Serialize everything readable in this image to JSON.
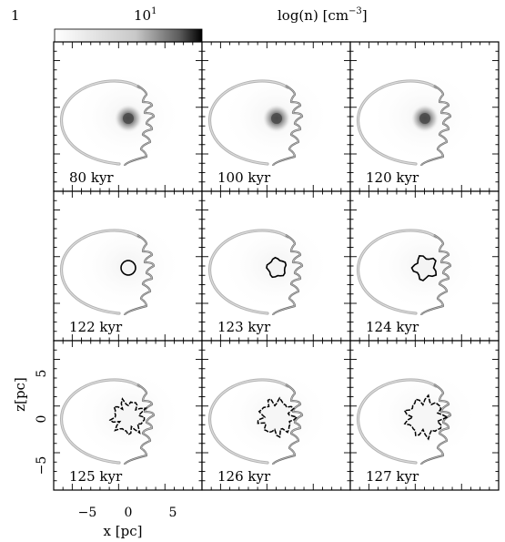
{
  "colorbar": {
    "label": "log(n) [cm",
    "label_exp": "−3",
    "label_close": "]",
    "tick_low": "1",
    "tick_high_base": "10",
    "tick_high_exp": "1"
  },
  "axes": {
    "xlabel": "x [pc]",
    "ylabel": "z[pc]",
    "xticks": [
      "−5",
      "0",
      "5"
    ],
    "yticks": [
      "5",
      "0",
      "−5"
    ]
  },
  "panels": [
    {
      "time": "80 kyr",
      "stage": "cloud"
    },
    {
      "time": "100 kyr",
      "stage": "cloud"
    },
    {
      "time": "120 kyr",
      "stage": "cloud"
    },
    {
      "time": "122 kyr",
      "stage": "ring"
    },
    {
      "time": "123 kyr",
      "stage": "ring"
    },
    {
      "time": "124 kyr",
      "stage": "ring"
    },
    {
      "time": "125 kyr",
      "stage": "shredded"
    },
    {
      "time": "126 kyr",
      "stage": "shredded"
    },
    {
      "time": "127 kyr",
      "stage": "shredded"
    }
  ],
  "colors": {
    "colormap_low": "#ffffff",
    "colormap_high": "#000000"
  }
}
